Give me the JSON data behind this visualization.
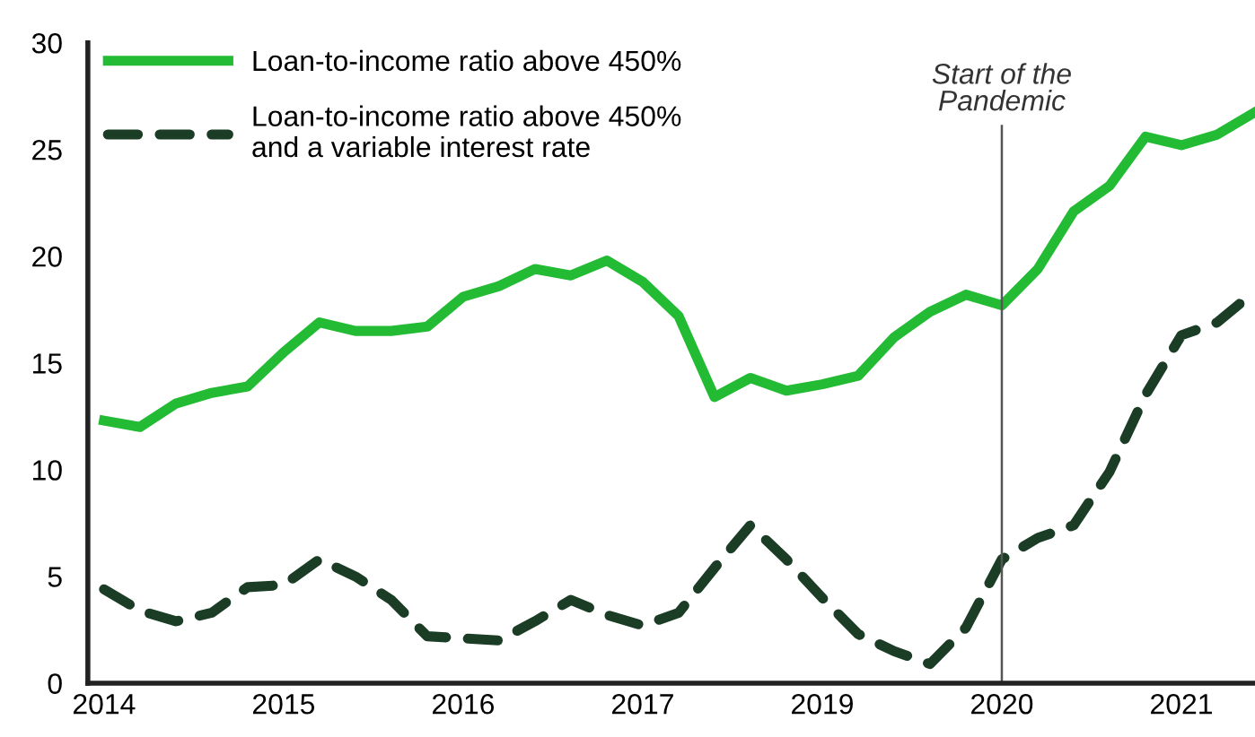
{
  "chart_data": {
    "type": "line",
    "categories": [
      "2014",
      null,
      null,
      null,
      null,
      "2015",
      null,
      null,
      null,
      null,
      "2016",
      null,
      null,
      null,
      null,
      "2017",
      null,
      null,
      null,
      null,
      "2019",
      null,
      null,
      null,
      null,
      "2020",
      null,
      null,
      null,
      null,
      "2021",
      null,
      null
    ],
    "series": [
      {
        "name": "Loan-to-income ratio above 450%",
        "color": "#22bb33",
        "line_style": "solid",
        "values": [
          12.3,
          12.0,
          13.1,
          13.6,
          13.9,
          15.5,
          16.9,
          16.5,
          16.5,
          16.7,
          18.1,
          18.6,
          19.4,
          19.1,
          19.8,
          18.8,
          17.2,
          13.4,
          14.3,
          13.7,
          14.0,
          14.4,
          16.2,
          17.4,
          18.2,
          17.7,
          19.4,
          22.1,
          23.3,
          25.6,
          25.2,
          25.7,
          26.7
        ]
      },
      {
        "name": "Loan-to-income ratio above 450%\nand a variable interest rate",
        "color": "#1b3d25",
        "line_style": "dashed",
        "values": [
          4.4,
          3.4,
          2.9,
          3.3,
          4.5,
          4.6,
          5.8,
          5.0,
          3.9,
          2.2,
          2.1,
          2.0,
          2.9,
          3.9,
          3.2,
          2.7,
          3.3,
          5.4,
          7.4,
          5.8,
          4.0,
          2.3,
          1.5,
          0.9,
          2.6,
          5.8,
          6.8,
          7.4,
          9.9,
          13.5,
          16.3,
          16.9,
          18.3
        ]
      }
    ],
    "ylim": [
      0,
      30
    ],
    "yticks": [
      0,
      5,
      10,
      15,
      20,
      25,
      30
    ],
    "grid": false,
    "legend": "top left",
    "marker": "none",
    "ref_lines": [
      {
        "axis": "x",
        "value": "2020",
        "label": "Start of the\nPandemic",
        "color": "#555555",
        "line_style": "solid"
      }
    ]
  }
}
